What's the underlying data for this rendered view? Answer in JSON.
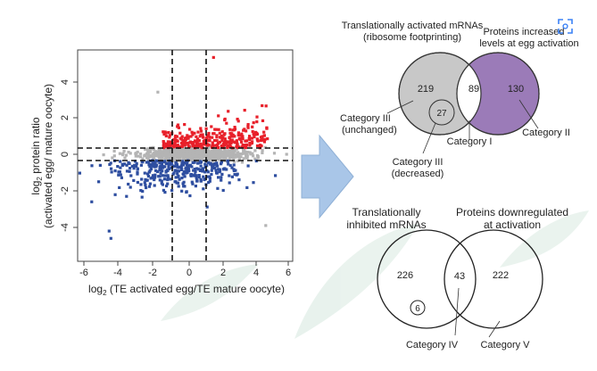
{
  "scatter": {
    "x_label_prefix": "log",
    "x_label_sub": "2",
    "x_label_rest": " (TE activated egg/TE mature oocyte)",
    "y_label_line1_prefix": "log",
    "y_label_line1_sub": "2",
    "y_label_line1_rest": " protein ratio",
    "y_label_line2": "(activated egg/ mature oocyte)",
    "x_ticks": [
      "-6",
      "-4",
      "-2",
      "0",
      "2",
      "4",
      "6"
    ],
    "y_ticks": [
      "4",
      "2",
      "0",
      "-2",
      "-4"
    ],
    "colors": {
      "up": "#e8202a",
      "down": "#2e4ea0",
      "neutral": "#b4b4b4"
    }
  },
  "arrow": {
    "color": "#a9c6e8"
  },
  "venn_top": {
    "left_title_line1": "Translationally activated mRNAs",
    "left_title_line2": "(ribosome footprinting)",
    "right_title_line1": "Proteins increased",
    "right_title_line2": "levels at egg activation",
    "left_only": "219",
    "overlap": "89",
    "right_only": "130",
    "inner": "27",
    "cat3_unchanged_line1": "Category III",
    "cat3_unchanged_line2": "(unchanged)",
    "cat1": "Category I",
    "cat2": "Category II",
    "cat3_decreased_line1": "Category III",
    "cat3_decreased_line2": "(decreased)",
    "colors": {
      "left": "#c8c8c8",
      "right": "#9b7bb8"
    }
  },
  "venn_bottom": {
    "left_title_line1": "Translationally",
    "left_title_line2": "inhibited mRNAs",
    "right_title_line1": "Proteins downregulated",
    "right_title_line2": "at activation",
    "left_only": "226",
    "overlap": "43",
    "right_only": "222",
    "inner": "6",
    "cat4": "Category IV",
    "cat5": "Category V"
  },
  "corner_icon": "scan-icon"
}
